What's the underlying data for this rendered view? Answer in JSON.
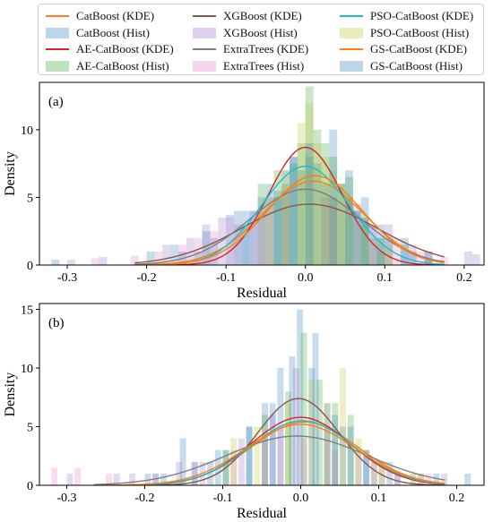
{
  "legend": {
    "items": [
      {
        "label": "CatBoost (KDE)",
        "kind": "kde",
        "color": "#ff7f0e"
      },
      {
        "label": "CatBoost (Hist)",
        "kind": "hist",
        "color": "#1f77b4"
      },
      {
        "label": "AE-CatBoost (KDE)",
        "kind": "kde",
        "color": "#d62728"
      },
      {
        "label": "AE-CatBoost (Hist)",
        "kind": "hist",
        "color": "#2ca02c"
      },
      {
        "label": "XGBoost (KDE)",
        "kind": "kde",
        "color": "#8c564b"
      },
      {
        "label": "XGBoost (Hist)",
        "kind": "hist",
        "color": "#9467bd"
      },
      {
        "label": "ExtraTrees (KDE)",
        "kind": "kde",
        "color": "#7f7f7f"
      },
      {
        "label": "ExtraTrees (Hist)",
        "kind": "hist",
        "color": "#e377c2"
      },
      {
        "label": "PSO-CatBoost (KDE)",
        "kind": "kde",
        "color": "#17becf"
      },
      {
        "label": "PSO-CatBoost (Hist)",
        "kind": "hist",
        "color": "#bcbd22"
      },
      {
        "label": "GS-CatBoost (KDE)",
        "kind": "kde",
        "color": "#ff7f0e"
      },
      {
        "label": "GS-CatBoost (Hist)",
        "kind": "hist",
        "color": "#1f77b4"
      }
    ]
  },
  "chart_data": [
    {
      "type": "area",
      "panel_label": "(a)",
      "xlabel": "Residual",
      "ylabel": "Density",
      "xlim": [
        -0.335,
        0.225
      ],
      "ylim": [
        0,
        13.5
      ],
      "xticks": [
        -0.3,
        -0.2,
        -0.1,
        0.0,
        0.1,
        0.2
      ],
      "xtick_labels": [
        "-0.3",
        "-0.2",
        "-0.1",
        "0.0",
        "0.1",
        "0.2"
      ],
      "yticks": [
        0,
        5,
        10
      ],
      "ytick_labels": [
        "0",
        "5",
        "10"
      ],
      "kde_range": [
        -0.215,
        0.175
      ],
      "kde": [
        {
          "name": "CatBoost (KDE)",
          "color": "#ff7f0e",
          "peak": 6.2,
          "mean": 0.01,
          "sd": 0.064
        },
        {
          "name": "AE-CatBoost (KDE)",
          "color": "#d62728",
          "peak": 8.7,
          "mean": 0.0,
          "sd": 0.046
        },
        {
          "name": "XGBoost (KDE)",
          "color": "#8c564b",
          "peak": 4.5,
          "mean": 0.005,
          "sd": 0.085
        },
        {
          "name": "ExtraTrees (KDE)",
          "color": "#7f7f7f",
          "peak": 5.6,
          "mean": 0.0,
          "sd": 0.07
        },
        {
          "name": "PSO-CatBoost (KDE)",
          "color": "#17becf",
          "peak": 7.3,
          "mean": 0.0,
          "sd": 0.055
        },
        {
          "name": "GS-CatBoost (KDE)",
          "color": "#ff7f0e",
          "peak": 6.6,
          "mean": 0.012,
          "sd": 0.06
        }
      ],
      "hist": [
        {
          "name": "CatBoost (Hist)",
          "color": "#1f77b4",
          "bin_width": 0.01,
          "bins": [
            [
              -0.32,
              0.4
            ],
            [
              -0.16,
              1.0
            ],
            [
              -0.14,
              1.0
            ],
            [
              -0.12,
              2.0
            ],
            [
              -0.1,
              3.7
            ],
            [
              -0.09,
              4.0
            ],
            [
              -0.08,
              3.0
            ],
            [
              -0.07,
              4.0
            ],
            [
              -0.06,
              5.0
            ],
            [
              -0.05,
              6.0
            ],
            [
              -0.04,
              5.5
            ],
            [
              -0.03,
              7.0
            ],
            [
              -0.02,
              8.0
            ],
            [
              -0.01,
              7.0
            ],
            [
              0.0,
              8.0
            ],
            [
              0.01,
              7.5
            ],
            [
              0.02,
              6.0
            ],
            [
              0.03,
              5.0
            ],
            [
              0.04,
              6.0
            ],
            [
              0.05,
              5.0
            ],
            [
              0.06,
              4.0
            ],
            [
              0.07,
              3.5
            ],
            [
              0.08,
              3.0
            ],
            [
              0.09,
              2.0
            ],
            [
              0.1,
              2.0
            ],
            [
              0.12,
              1.5
            ],
            [
              0.13,
              1.0
            ],
            [
              0.15,
              0.4
            ]
          ]
        },
        {
          "name": "AE-CatBoost (Hist)",
          "color": "#2ca02c",
          "bin_width": 0.01,
          "bins": [
            [
              -0.06,
              6.0
            ],
            [
              -0.04,
              7.0
            ],
            [
              -0.03,
              6.0
            ],
            [
              -0.02,
              7.5
            ],
            [
              -0.01,
              9.0
            ],
            [
              0.0,
              13.2
            ],
            [
              0.01,
              10.0
            ],
            [
              0.02,
              9.0
            ],
            [
              0.03,
              8.0
            ],
            [
              0.04,
              6.0
            ],
            [
              0.05,
              6.5
            ],
            [
              0.06,
              4.0
            ],
            [
              0.07,
              3.0
            ],
            [
              0.08,
              2.0
            ],
            [
              0.09,
              1.0
            ]
          ]
        },
        {
          "name": "XGBoost (Hist)",
          "color": "#9467bd",
          "bin_width": 0.01,
          "bins": [
            [
              -0.3,
              0.4
            ],
            [
              -0.26,
              0.6
            ],
            [
              -0.18,
              1.5
            ],
            [
              -0.15,
              2.0
            ],
            [
              -0.13,
              3.0
            ],
            [
              -0.11,
              3.5
            ],
            [
              -0.09,
              3.0
            ],
            [
              -0.07,
              4.0
            ],
            [
              -0.05,
              5.0
            ],
            [
              -0.03,
              5.5
            ],
            [
              0.02,
              5.0
            ],
            [
              0.06,
              4.5
            ],
            [
              0.1,
              3.0
            ],
            [
              0.13,
              1.5
            ],
            [
              0.15,
              1.0
            ],
            [
              0.2,
              1.0
            ],
            [
              0.21,
              0.8
            ]
          ]
        },
        {
          "name": "ExtraTrees (Hist)",
          "color": "#e377c2",
          "bin_width": 0.01,
          "bins": [
            [
              -0.27,
              0.5
            ],
            [
              -0.22,
              0.7
            ],
            [
              -0.19,
              1.0
            ],
            [
              -0.16,
              1.5
            ],
            [
              -0.14,
              2.0
            ],
            [
              -0.12,
              2.5
            ],
            [
              -0.1,
              3.5
            ],
            [
              -0.06,
              4.0
            ],
            [
              0.03,
              4.5
            ],
            [
              0.08,
              3.0
            ],
            [
              0.11,
              2.0
            ],
            [
              0.14,
              1.0
            ],
            [
              0.17,
              0.6
            ]
          ]
        },
        {
          "name": "PSO-CatBoost (Hist)",
          "color": "#bcbd22",
          "bin_width": 0.01,
          "bins": [
            [
              -0.05,
              5.0
            ],
            [
              -0.03,
              7.0
            ],
            [
              -0.01,
              10.5
            ],
            [
              0.0,
              12.0
            ],
            [
              0.01,
              9.0
            ],
            [
              0.02,
              8.0
            ],
            [
              0.03,
              7.0
            ],
            [
              0.04,
              6.0
            ],
            [
              0.05,
              5.0
            ],
            [
              0.07,
              3.5
            ],
            [
              0.09,
              2.0
            ],
            [
              0.1,
              1.5
            ]
          ]
        },
        {
          "name": "GS-CatBoost (Hist)",
          "color": "#1f77b4",
          "bin_width": 0.01,
          "bins": [
            [
              -0.2,
              1.0
            ],
            [
              -0.17,
              1.5
            ],
            [
              -0.13,
              2.5
            ],
            [
              -0.08,
              4.0
            ],
            [
              -0.04,
              5.0
            ],
            [
              -0.02,
              8.0
            ],
            [
              0.0,
              9.0
            ],
            [
              0.03,
              10.0
            ],
            [
              0.05,
              7.0
            ],
            [
              0.07,
              5.0
            ],
            [
              0.09,
              3.0
            ],
            [
              0.12,
              2.0
            ],
            [
              0.15,
              1.0
            ]
          ]
        }
      ]
    },
    {
      "type": "area",
      "panel_label": "(b)",
      "xlabel": "Residual",
      "ylabel": "Density",
      "xlim": [
        -0.335,
        0.235
      ],
      "ylim": [
        0,
        15.5
      ],
      "xticks": [
        -0.3,
        -0.2,
        -0.1,
        0.0,
        0.1,
        0.2
      ],
      "xtick_labels": [
        "-0.3",
        "-0.2",
        "-0.1",
        "0.0",
        "0.1",
        "0.2"
      ],
      "yticks": [
        0,
        5,
        10,
        15
      ],
      "ytick_labels": [
        "0",
        "5",
        "10",
        "15"
      ],
      "kde_range": [
        -0.265,
        0.185
      ],
      "kde": [
        {
          "name": "CatBoost (KDE)",
          "color": "#ff7f0e",
          "peak": 5.4,
          "mean": 0.005,
          "sd": 0.068
        },
        {
          "name": "AE-CatBoost (KDE)",
          "color": "#d62728",
          "peak": 5.8,
          "mean": 0.0,
          "sd": 0.064
        },
        {
          "name": "XGBoost (KDE)",
          "color": "#8c564b",
          "peak": 7.4,
          "mean": -0.003,
          "sd": 0.052
        },
        {
          "name": "ExtraTrees (KDE)",
          "color": "#7f7f7f",
          "peak": 4.2,
          "mean": -0.005,
          "sd": 0.09
        },
        {
          "name": "PSO-CatBoost (KDE)",
          "color": "#17becf",
          "peak": 5.5,
          "mean": 0.002,
          "sd": 0.066
        },
        {
          "name": "GS-CatBoost (KDE)",
          "color": "#ff7f0e",
          "peak": 5.2,
          "mean": 0.0,
          "sd": 0.07
        }
      ],
      "hist": [
        {
          "name": "CatBoost (Hist)",
          "color": "#1f77b4",
          "bin_width": 0.008,
          "bins": [
            [
              -0.2,
              1.0
            ],
            [
              -0.18,
              1.0
            ],
            [
              -0.155,
              4.0
            ],
            [
              -0.12,
              2.0
            ],
            [
              -0.1,
              3.0
            ],
            [
              -0.07,
              5.0
            ],
            [
              -0.05,
              7.0
            ],
            [
              -0.03,
              10.0
            ],
            [
              -0.005,
              15.0
            ],
            [
              0.01,
              10.0
            ],
            [
              0.03,
              7.0
            ],
            [
              0.05,
              5.0
            ],
            [
              0.08,
              3.0
            ],
            [
              0.12,
              1.0
            ],
            [
              0.21,
              1.0
            ]
          ]
        },
        {
          "name": "AE-CatBoost (Hist)",
          "color": "#2ca02c",
          "bin_width": 0.008,
          "bins": [
            [
              -0.1,
              3.0
            ],
            [
              -0.05,
              6.0
            ],
            [
              -0.02,
              8.0
            ],
            [
              0.0,
              13.0
            ],
            [
              0.02,
              9.0
            ],
            [
              0.04,
              7.0
            ],
            [
              0.06,
              6.0
            ],
            [
              0.09,
              2.0
            ],
            [
              0.14,
              1.0
            ]
          ]
        },
        {
          "name": "XGBoost (Hist)",
          "color": "#9467bd",
          "bin_width": 0.008,
          "bins": [
            [
              -0.3,
              1.0
            ],
            [
              -0.24,
              1.0
            ],
            [
              -0.22,
              1.0
            ],
            [
              -0.16,
              2.0
            ],
            [
              -0.13,
              2.0
            ],
            [
              -0.08,
              4.0
            ],
            [
              -0.04,
              6.0
            ],
            [
              -0.01,
              10.0
            ],
            [
              0.03,
              5.0
            ],
            [
              0.07,
              3.0
            ],
            [
              0.1,
              2.0
            ],
            [
              0.15,
              1.0
            ],
            [
              0.18,
              1.0
            ]
          ]
        },
        {
          "name": "ExtraTrees (Hist)",
          "color": "#e377c2",
          "bin_width": 0.008,
          "bins": [
            [
              -0.32,
              1.5
            ],
            [
              -0.29,
              1.5
            ],
            [
              -0.25,
              1.0
            ],
            [
              -0.19,
              1.0
            ],
            [
              -0.14,
              2.0
            ],
            [
              -0.09,
              3.0
            ],
            [
              -0.05,
              4.0
            ],
            [
              -0.03,
              5.0
            ],
            [
              0.0,
              4.0
            ],
            [
              0.04,
              3.0
            ],
            [
              0.09,
              2.0
            ],
            [
              0.12,
              1.0
            ],
            [
              0.16,
              1.0
            ]
          ]
        },
        {
          "name": "PSO-CatBoost (Hist)",
          "color": "#bcbd22",
          "bin_width": 0.008,
          "bins": [
            [
              -0.09,
              4.0
            ],
            [
              -0.06,
              5.0
            ],
            [
              -0.02,
              7.0
            ],
            [
              0.01,
              9.0
            ],
            [
              0.03,
              7.0
            ],
            [
              0.05,
              10.0
            ],
            [
              0.07,
              4.0
            ],
            [
              0.1,
              2.0
            ],
            [
              0.15,
              1.0
            ]
          ]
        },
        {
          "name": "GS-CatBoost (Hist)",
          "color": "#1f77b4",
          "bin_width": 0.008,
          "bins": [
            [
              -0.19,
              1.0
            ],
            [
              -0.14,
              2.0
            ],
            [
              -0.11,
              3.0
            ],
            [
              -0.07,
              5.0
            ],
            [
              -0.04,
              7.0
            ],
            [
              -0.015,
              11.0
            ],
            [
              0.015,
              13.0
            ],
            [
              0.04,
              6.0
            ],
            [
              0.06,
              5.0
            ],
            [
              0.08,
              3.0
            ],
            [
              0.11,
              2.0
            ],
            [
              0.17,
              1.0
            ]
          ]
        }
      ]
    }
  ]
}
